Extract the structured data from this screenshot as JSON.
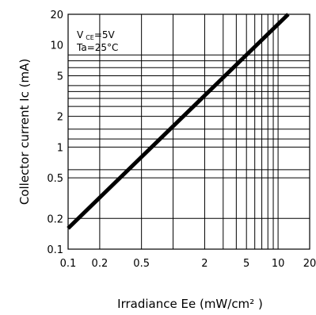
{
  "chart_data": {
    "type": "line",
    "x_scale": "log",
    "y_scale": "log",
    "xlim": [
      0.1,
      20
    ],
    "ylim": [
      0.1,
      20
    ],
    "grid": true,
    "xlabel": "Irradiance Ee (mW/cm² )",
    "ylabel": "Collector current Ic (mA)",
    "annotation": {
      "line1_prefix": "V",
      "line1_sub": "CE",
      "line1_suffix": "=5V",
      "line2": "Ta=25°C"
    },
    "x_ticks": [
      {
        "value": 0.1,
        "label": "0.1"
      },
      {
        "value": 0.2,
        "label": "0.2"
      },
      {
        "value": 0.5,
        "label": "0.5"
      },
      {
        "value": 2,
        "label": "2"
      },
      {
        "value": 5,
        "label": "5"
      },
      {
        "value": 10,
        "label": "10"
      },
      {
        "value": 20,
        "label": "20"
      }
    ],
    "y_ticks": [
      {
        "value": 0.1,
        "label": "0.1"
      },
      {
        "value": 0.2,
        "label": "0.2"
      },
      {
        "value": 0.5,
        "label": "0.5"
      },
      {
        "value": 1,
        "label": "1"
      },
      {
        "value": 2,
        "label": "2"
      },
      {
        "value": 5,
        "label": "5"
      },
      {
        "value": 10,
        "label": "10"
      },
      {
        "value": 20,
        "label": "20"
      }
    ],
    "x_gridlines": [
      0.2,
      0.5,
      1,
      2,
      3,
      4,
      5,
      6,
      7,
      8,
      9,
      10
    ],
    "y_gridlines": [
      0.2,
      0.5,
      0.6,
      1,
      1.2,
      1.5,
      2,
      2.5,
      3,
      3.5,
      4,
      5,
      6,
      7,
      8
    ],
    "series": [
      {
        "color": "#000000",
        "points": [
          {
            "x": 0.1,
            "y": 0.16
          },
          {
            "x": 12.5,
            "y": 20
          }
        ]
      }
    ]
  }
}
